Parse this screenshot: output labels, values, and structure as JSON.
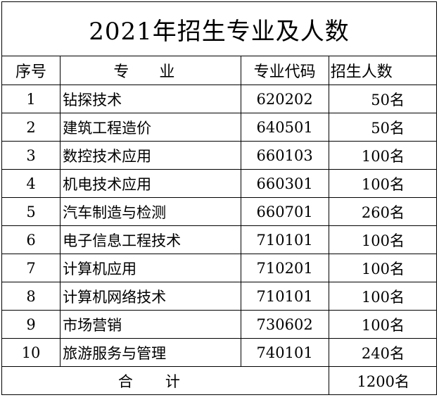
{
  "title": "2021年招生专业及人数",
  "headers": {
    "index": "序号",
    "major": "专  业",
    "code": "专业代码",
    "count": "招生人数"
  },
  "rows": [
    {
      "index": "1",
      "major": "钻探技术",
      "code": "620202",
      "count": "50名"
    },
    {
      "index": "2",
      "major": "建筑工程造价",
      "code": "640501",
      "count": "50名"
    },
    {
      "index": "3",
      "major": "数控技术应用",
      "code": "660103",
      "count": "100名"
    },
    {
      "index": "4",
      "major": "机电技术应用",
      "code": "660301",
      "count": "100名"
    },
    {
      "index": "5",
      "major": "汽车制造与检测",
      "code": "660701",
      "count": "260名"
    },
    {
      "index": "6",
      "major": "电子信息工程技术",
      "code": "710101",
      "count": "100名"
    },
    {
      "index": "7",
      "major": "计算机应用",
      "code": "710201",
      "count": "100名"
    },
    {
      "index": "8",
      "major": "计算机网络技术",
      "code": "710101",
      "count": "100名"
    },
    {
      "index": "9",
      "major": "市场营销",
      "code": "730602",
      "count": "100名"
    },
    {
      "index": "10",
      "major": "旅游服务与管理",
      "code": "740101",
      "count": "240名"
    }
  ],
  "total": {
    "label": "合计",
    "count": "1200名"
  }
}
